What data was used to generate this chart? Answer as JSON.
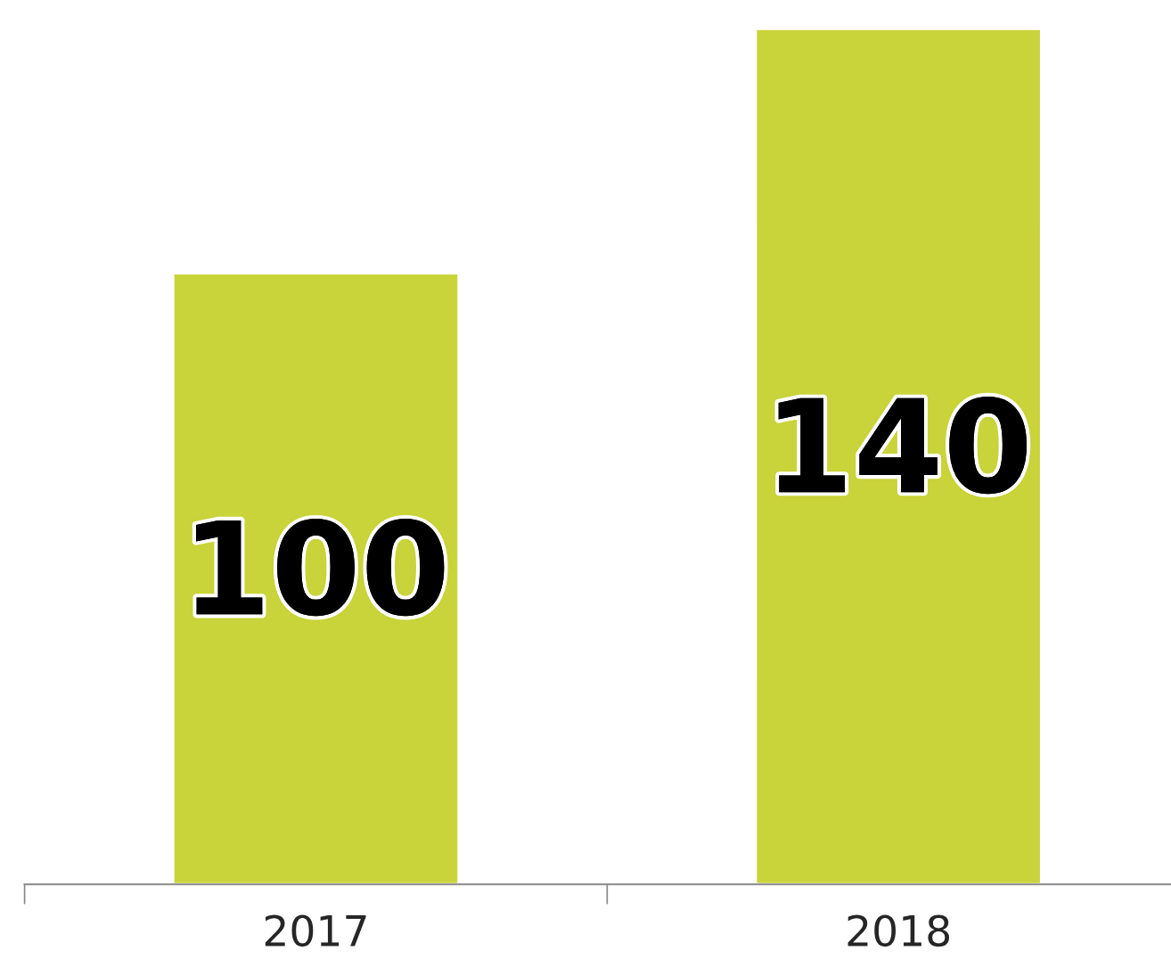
{
  "chart_data": {
    "type": "bar",
    "categories": [
      "2017",
      "2018"
    ],
    "values": [
      100,
      140
    ],
    "color": "#c9d33a",
    "data_labels": true,
    "grid": false,
    "legend": false
  }
}
